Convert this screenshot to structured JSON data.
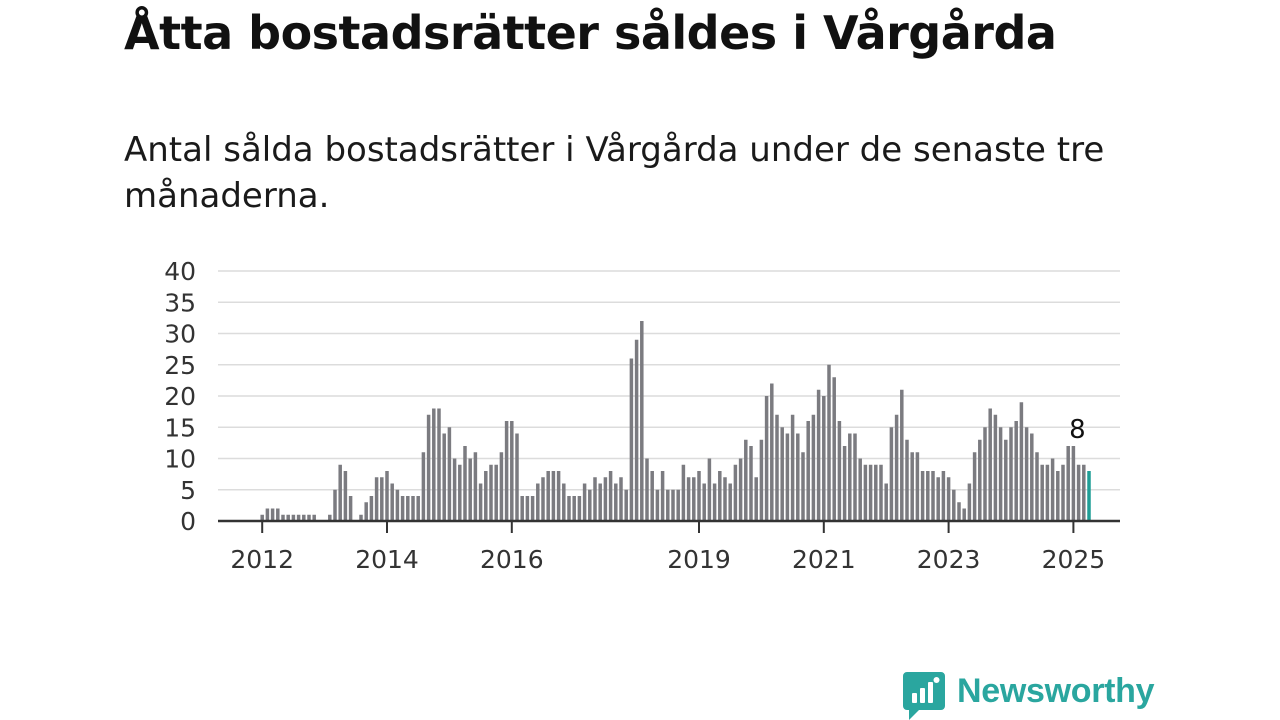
{
  "header": {
    "title": "Åtta bostadsrätter såldes i Vårgårda",
    "subtitle": "Antal sålda bostadsrätter i Vårgårda under de senaste tre månaderna."
  },
  "brand": {
    "name": "Newsworthy",
    "color": "#2aa69f",
    "icon": "newsworthy-logo-icon"
  },
  "chart_data": {
    "type": "bar",
    "title": "",
    "xlabel": "",
    "ylabel": "",
    "ylim": [
      0,
      40
    ],
    "yticks": [
      "0",
      "5",
      "10",
      "15",
      "20",
      "25",
      "30",
      "35",
      "40"
    ],
    "grid": true,
    "legend": "none",
    "bar_color": "#7b7b80",
    "highlight_color": "#1f9e96",
    "start": "2011-12",
    "xticks": [
      {
        "label": "2012",
        "month": "2012-01"
      },
      {
        "label": "2014",
        "month": "2014-01"
      },
      {
        "label": "2016",
        "month": "2016-01"
      },
      {
        "label": "2019",
        "month": "2019-01"
      },
      {
        "label": "2021",
        "month": "2021-01"
      },
      {
        "label": "2023",
        "month": "2023-01"
      },
      {
        "label": "2025",
        "month": "2025-01"
      }
    ],
    "values": [
      0,
      1,
      2,
      2,
      2,
      1,
      1,
      1,
      1,
      1,
      1,
      1,
      0,
      0,
      1,
      5,
      9,
      8,
      4,
      0,
      1,
      3,
      4,
      7,
      7,
      8,
      6,
      5,
      4,
      4,
      4,
      4,
      11,
      17,
      18,
      18,
      14,
      15,
      10,
      9,
      12,
      10,
      11,
      6,
      8,
      9,
      9,
      11,
      16,
      16,
      14,
      4,
      4,
      4,
      6,
      7,
      8,
      8,
      8,
      6,
      4,
      4,
      4,
      6,
      5,
      7,
      6,
      7,
      8,
      6,
      7,
      5,
      26,
      29,
      32,
      10,
      8,
      5,
      8,
      5,
      5,
      5,
      9,
      7,
      7,
      8,
      6,
      10,
      6,
      8,
      7,
      6,
      9,
      10,
      13,
      12,
      7,
      13,
      20,
      22,
      17,
      15,
      14,
      17,
      14,
      11,
      16,
      17,
      21,
      20,
      25,
      23,
      16,
      12,
      14,
      14,
      10,
      9,
      9,
      9,
      9,
      6,
      15,
      17,
      21,
      13,
      11,
      11,
      8,
      8,
      8,
      7,
      8,
      7,
      5,
      3,
      2,
      6,
      11,
      13,
      15,
      18,
      17,
      15,
      13,
      15,
      16,
      19,
      15,
      14,
      11,
      9,
      9,
      10,
      8,
      9,
      12,
      12,
      9,
      9,
      8
    ],
    "annotation": {
      "label": "8",
      "month": "2025-01"
    }
  }
}
